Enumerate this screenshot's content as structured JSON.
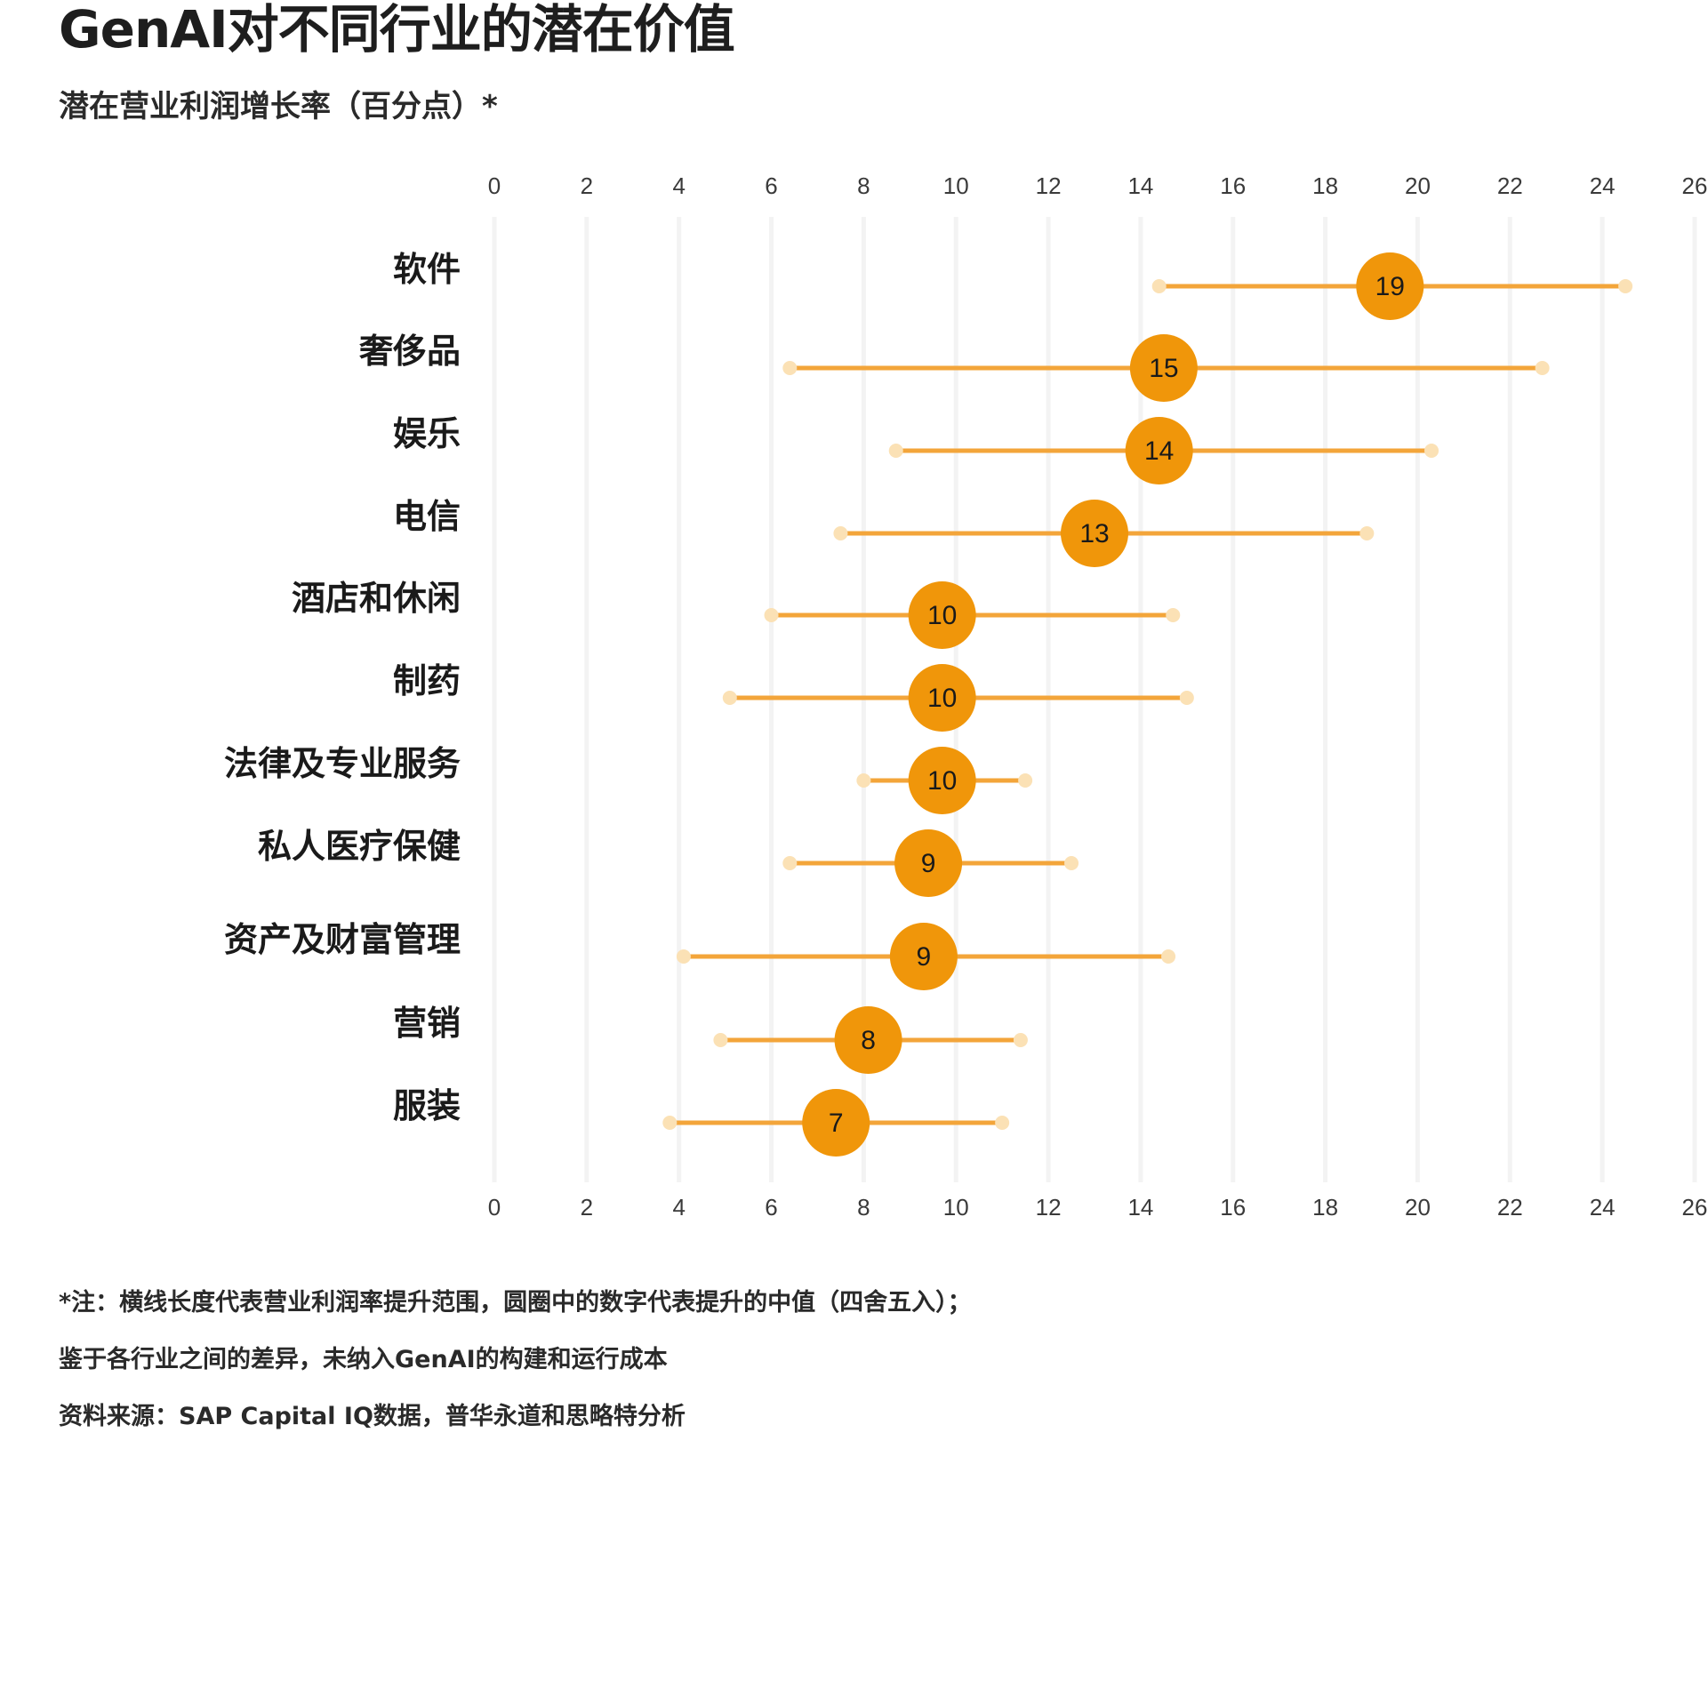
{
  "chart_data": {
    "type": "dot-range",
    "title": "GenAI对不同行业的潜在价值",
    "subtitle": "潜在营业利润增长率（百分点）*",
    "xlim": [
      0,
      26
    ],
    "x_ticks": [
      "0",
      "2",
      "4",
      "6",
      "8",
      "10",
      "12",
      "14",
      "16",
      "18",
      "20",
      "22",
      "24",
      "26"
    ],
    "grid": "vertical",
    "categories": [
      "软件",
      "奢侈品",
      "娱乐",
      "电信",
      "酒店和休闲",
      "制药",
      "法律及专业服务",
      "私人医疗保健",
      "资产及财富管理",
      "营销",
      "服装"
    ],
    "series": [
      {
        "values": [
          19,
          15,
          14,
          13,
          10,
          10,
          10,
          9,
          9,
          8,
          7
        ],
        "center": [
          19.4,
          14.5,
          14.4,
          13.0,
          9.7,
          9.7,
          9.7,
          9.4,
          9.3,
          8.1,
          7.4
        ],
        "low": [
          14.4,
          6.4,
          8.7,
          7.5,
          6.0,
          5.1,
          8.0,
          6.4,
          4.1,
          4.9,
          3.8
        ],
        "high": [
          24.5,
          22.7,
          20.3,
          18.9,
          14.7,
          15.0,
          11.5,
          12.5,
          14.6,
          11.4,
          11.0
        ]
      }
    ],
    "colors": {
      "marker": "#f0960a",
      "range_line": "#f3a53a",
      "endpoint": "#fbe1b5",
      "grid": "#f3f3f3",
      "label_text": "#1a1a1a"
    }
  },
  "notes": [
    "*注：横线长度代表营业利润率提升范围，圆圈中的数字代表提升的中值（四舍五入）；",
    "鉴于各行业之间的差异，未纳入GenAI的构建和运行成本",
    "资料来源：SAP Capital IQ数据，普华永道和思略特分析"
  ]
}
